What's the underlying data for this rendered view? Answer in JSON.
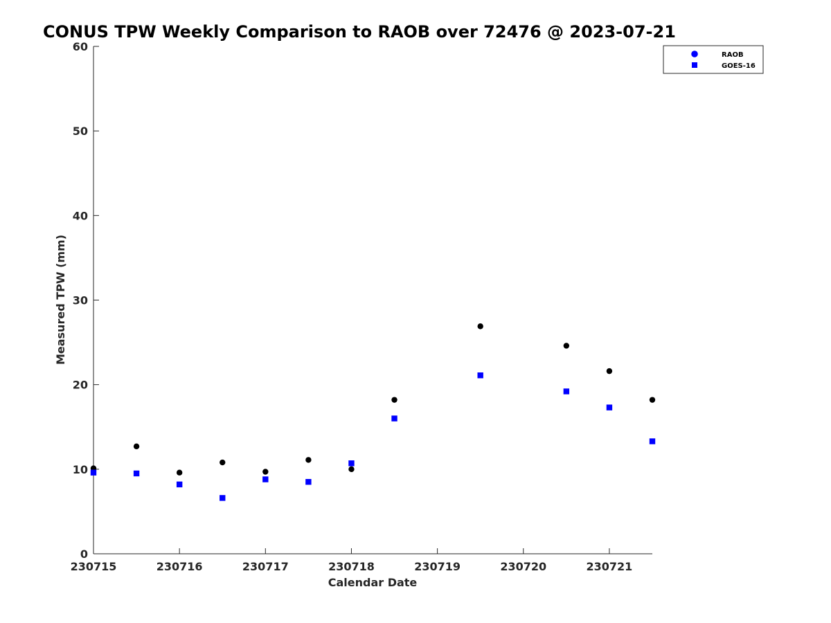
{
  "chart_data": {
    "type": "scatter",
    "title": "CONUS TPW Weekly Comparison to RAOB over 72476 @ 2023-07-21",
    "xlabel": "Calendar Date",
    "ylabel": "Measured TPW (mm)",
    "xlim": [
      "2023-07-15",
      "2023-07-21 12:00"
    ],
    "ylim": [
      0,
      60
    ],
    "x_ticks": [
      "2023-07-15",
      "2023-07-16",
      "2023-07-17",
      "2023-07-18",
      "2023-07-19",
      "2023-07-20",
      "2023-07-21"
    ],
    "x_tick_labels": [
      "230715",
      "230716",
      "230717",
      "230718",
      "230719",
      "230720",
      "230721"
    ],
    "y_ticks": [
      0,
      10,
      20,
      30,
      40,
      50,
      60
    ],
    "grid": false,
    "legend_position": "top-right",
    "series": [
      {
        "name": "RAOB",
        "marker": "circle",
        "marker_color": "#000000",
        "legend_color": "#0000ff",
        "points": [
          {
            "x": "2023-07-15 00:00",
            "y": 10.1
          },
          {
            "x": "2023-07-15 12:00",
            "y": 12.7
          },
          {
            "x": "2023-07-16 00:00",
            "y": 9.6
          },
          {
            "x": "2023-07-16 12:00",
            "y": 10.8
          },
          {
            "x": "2023-07-17 00:00",
            "y": 9.7
          },
          {
            "x": "2023-07-17 12:00",
            "y": 11.1
          },
          {
            "x": "2023-07-18 00:00",
            "y": 10.0
          },
          {
            "x": "2023-07-18 12:00",
            "y": 18.2
          },
          {
            "x": "2023-07-19 12:00",
            "y": 26.9
          },
          {
            "x": "2023-07-20 12:00",
            "y": 24.6
          },
          {
            "x": "2023-07-21 00:00",
            "y": 21.6
          },
          {
            "x": "2023-07-21 12:00",
            "y": 18.2
          }
        ]
      },
      {
        "name": "GOES-16",
        "marker": "square",
        "marker_color": "#0000ff",
        "legend_color": "#0000ff",
        "points": [
          {
            "x": "2023-07-15 00:00",
            "y": 9.6
          },
          {
            "x": "2023-07-15 12:00",
            "y": 9.5
          },
          {
            "x": "2023-07-16 00:00",
            "y": 8.2
          },
          {
            "x": "2023-07-16 12:00",
            "y": 6.6
          },
          {
            "x": "2023-07-17 00:00",
            "y": 8.8
          },
          {
            "x": "2023-07-17 12:00",
            "y": 8.5
          },
          {
            "x": "2023-07-18 00:00",
            "y": 10.7
          },
          {
            "x": "2023-07-18 12:00",
            "y": 16.0
          },
          {
            "x": "2023-07-19 12:00",
            "y": 21.1
          },
          {
            "x": "2023-07-20 12:00",
            "y": 19.2
          },
          {
            "x": "2023-07-21 00:00",
            "y": 17.3
          },
          {
            "x": "2023-07-21 12:00",
            "y": 13.3
          }
        ]
      }
    ]
  }
}
